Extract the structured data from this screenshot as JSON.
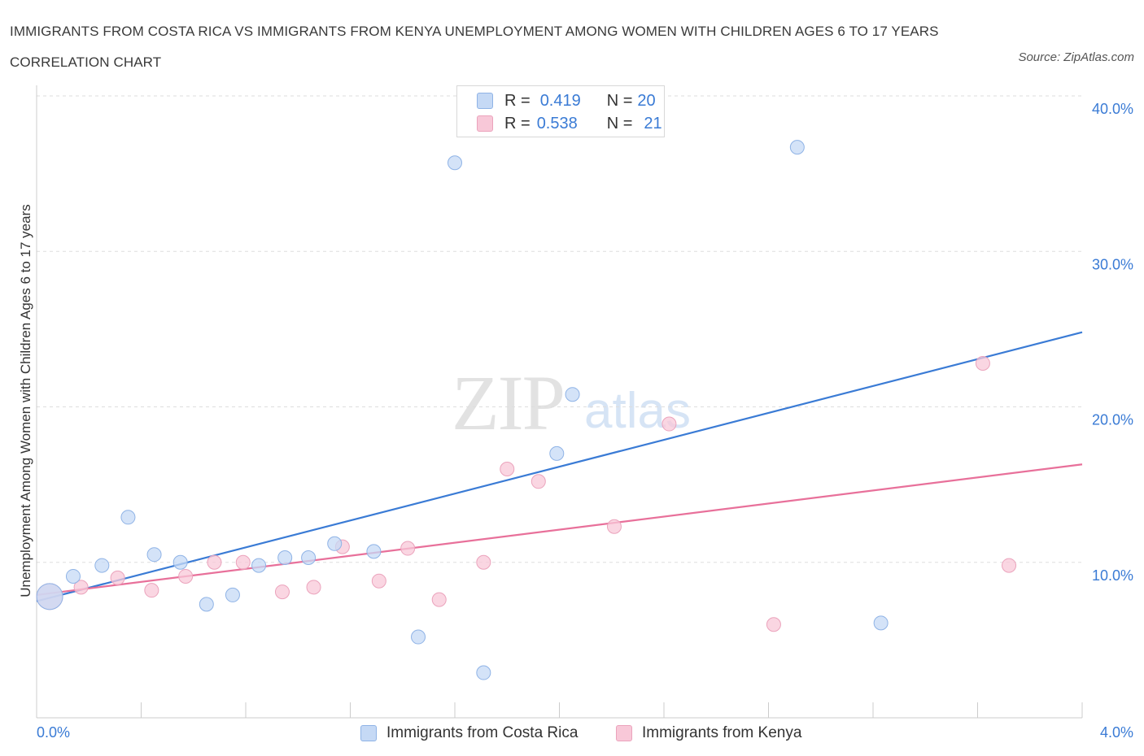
{
  "title": "IMMIGRANTS FROM COSTA RICA VS IMMIGRANTS FROM KENYA UNEMPLOYMENT AMONG WOMEN WITH CHILDREN AGES 6 TO 17 YEARS CORRELATION CHART",
  "source": "Source: ZipAtlas.com",
  "watermark": {
    "zip": "ZIP",
    "atlas": "atlas"
  },
  "colors": {
    "blue": "#3a7bd5",
    "blue_fill": "#c5d9f5",
    "pink": "#e8709a",
    "pink_fill": "#f8c8d8",
    "grid": "#dddddd"
  },
  "legend": {
    "rows": [
      {
        "r_label": "R =",
        "r_value": "0.419",
        "n_label": "N =",
        "n_value": "20"
      },
      {
        "r_label": "R =",
        "r_value": "0.538",
        "n_label": "N =",
        "n_value": "21"
      }
    ]
  },
  "chart_data": {
    "type": "scatter",
    "xlabel": "",
    "ylabel": "Unemployment Among Women with Children Ages 6 to 17 years",
    "xlim": [
      0,
      4.0
    ],
    "ylim": [
      0,
      40
    ],
    "x_tick_labels": [
      "0.0%",
      "4.0%"
    ],
    "y_ticks": [
      10,
      20,
      30,
      40
    ],
    "y_tick_labels": [
      "10.0%",
      "20.0%",
      "30.0%",
      "40.0%"
    ],
    "grid": true,
    "series": [
      {
        "name": "Immigrants from Costa Rica",
        "color": "#3a7bd5",
        "points": [
          {
            "x": 0.05,
            "y": 7.8,
            "big": true
          },
          {
            "x": 0.14,
            "y": 9.1
          },
          {
            "x": 0.25,
            "y": 9.8
          },
          {
            "x": 0.35,
            "y": 12.9
          },
          {
            "x": 0.45,
            "y": 10.5
          },
          {
            "x": 0.55,
            "y": 10.0
          },
          {
            "x": 0.65,
            "y": 7.3
          },
          {
            "x": 0.75,
            "y": 7.9
          },
          {
            "x": 0.85,
            "y": 9.8
          },
          {
            "x": 0.95,
            "y": 10.3
          },
          {
            "x": 1.04,
            "y": 10.3
          },
          {
            "x": 1.14,
            "y": 11.2
          },
          {
            "x": 1.29,
            "y": 10.7
          },
          {
            "x": 1.46,
            "y": 5.2
          },
          {
            "x": 1.6,
            "y": 35.7
          },
          {
            "x": 1.71,
            "y": 2.9
          },
          {
            "x": 1.99,
            "y": 17.0
          },
          {
            "x": 2.05,
            "y": 20.8
          },
          {
            "x": 2.91,
            "y": 36.7
          },
          {
            "x": 3.23,
            "y": 6.1
          }
        ],
        "trend": {
          "x0": 0.0,
          "y0": 7.5,
          "x1": 4.0,
          "y1": 24.8
        }
      },
      {
        "name": "Immigrants from Kenya",
        "color": "#e8709a",
        "points": [
          {
            "x": 0.05,
            "y": 7.8,
            "big": true
          },
          {
            "x": 0.17,
            "y": 8.4
          },
          {
            "x": 0.31,
            "y": 9.0
          },
          {
            "x": 0.44,
            "y": 8.2
          },
          {
            "x": 0.57,
            "y": 9.1
          },
          {
            "x": 0.68,
            "y": 10.0
          },
          {
            "x": 0.79,
            "y": 10.0
          },
          {
            "x": 0.94,
            "y": 8.1
          },
          {
            "x": 1.06,
            "y": 8.4
          },
          {
            "x": 1.17,
            "y": 11.0
          },
          {
            "x": 1.31,
            "y": 8.8
          },
          {
            "x": 1.42,
            "y": 10.9
          },
          {
            "x": 1.54,
            "y": 7.6
          },
          {
            "x": 1.71,
            "y": 10.0
          },
          {
            "x": 1.8,
            "y": 16.0
          },
          {
            "x": 1.92,
            "y": 15.2
          },
          {
            "x": 2.21,
            "y": 12.3
          },
          {
            "x": 2.42,
            "y": 18.9
          },
          {
            "x": 2.82,
            "y": 6.0
          },
          {
            "x": 3.62,
            "y": 22.8
          },
          {
            "x": 3.72,
            "y": 9.8
          }
        ],
        "trend": {
          "x0": 0.0,
          "y0": 7.9,
          "x1": 4.0,
          "y1": 16.3
        }
      }
    ]
  }
}
